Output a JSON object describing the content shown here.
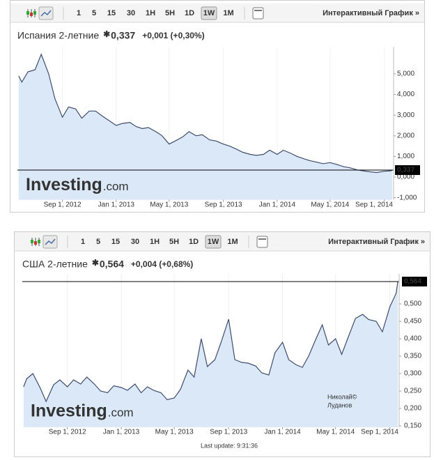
{
  "toolbar": {
    "intervals": [
      "1",
      "5",
      "15",
      "30",
      "1H",
      "5H",
      "1D",
      "1W",
      "1M"
    ],
    "selected": 7,
    "link": "Интерактивный График »"
  },
  "watermark": [
    "Investing",
    ".com"
  ],
  "chart_data": [
    {
      "type": "line",
      "title": "Испания 2-летние",
      "change": "+0,001 (+0,30%)",
      "last": {
        "value": 0.337,
        "label": "0,337"
      },
      "color": "#3e4c6d",
      "fill": "#dbe8f8",
      "grid": true,
      "x": [
        "2012-05-25",
        "2012-06-01",
        "2012-06-15",
        "2012-07-01",
        "2012-07-15",
        "2012-08-01",
        "2012-08-15",
        "2012-09-01",
        "2012-09-15",
        "2012-10-01",
        "2012-10-15",
        "2012-11-01",
        "2012-11-15",
        "2012-12-01",
        "2012-12-15",
        "2013-01-01",
        "2013-01-15",
        "2013-02-01",
        "2013-02-15",
        "2013-03-01",
        "2013-03-15",
        "2013-04-01",
        "2013-04-15",
        "2013-05-01",
        "2013-05-15",
        "2013-06-01",
        "2013-06-15",
        "2013-07-01",
        "2013-07-15",
        "2013-08-01",
        "2013-08-15",
        "2013-09-01",
        "2013-09-15",
        "2013-10-01",
        "2013-10-15",
        "2013-11-01",
        "2013-11-15",
        "2013-12-01",
        "2013-12-15",
        "2014-01-01",
        "2014-01-15",
        "2014-02-01",
        "2014-02-15",
        "2014-03-01",
        "2014-03-15",
        "2014-04-01",
        "2014-04-15",
        "2014-05-01",
        "2014-05-15",
        "2014-06-01",
        "2014-06-15",
        "2014-07-01",
        "2014-07-15",
        "2014-08-01",
        "2014-08-15",
        "2014-09-01",
        "2014-09-15",
        "2014-09-19"
      ],
      "values": [
        4.9,
        4.6,
        5.1,
        5.2,
        5.95,
        5.0,
        3.8,
        2.9,
        3.4,
        3.3,
        2.85,
        3.2,
        3.2,
        2.95,
        2.75,
        2.5,
        2.6,
        2.65,
        2.45,
        2.35,
        2.4,
        2.2,
        2.0,
        1.6,
        1.75,
        1.95,
        2.2,
        2.0,
        2.05,
        1.8,
        1.75,
        1.6,
        1.5,
        1.35,
        1.2,
        1.1,
        1.05,
        1.1,
        1.3,
        1.1,
        1.3,
        1.15,
        1.0,
        0.9,
        0.8,
        0.72,
        0.65,
        0.7,
        0.62,
        0.5,
        0.45,
        0.35,
        0.3,
        0.25,
        0.22,
        0.28,
        0.3,
        0.337
      ],
      "xlim": [
        "2012-05-22",
        "2014-09-22"
      ],
      "xticks": [
        {
          "value": "2012-09-01",
          "label": "Sep 1, 2012"
        },
        {
          "value": "2013-01-01",
          "label": "Jan 1, 2013"
        },
        {
          "value": "2013-05-01",
          "label": "May 1, 2013"
        },
        {
          "value": "2013-09-01",
          "label": "Sep 1, 2013"
        },
        {
          "value": "2014-01-01",
          "label": "Jan 1, 2014"
        },
        {
          "value": "2014-05-01",
          "label": "May 1, 2014"
        },
        {
          "value": "2014-09-01",
          "label": "Sep 1, 2014"
        }
      ],
      "ylim": [
        -1.1,
        6.3
      ],
      "yticks": [
        {
          "value": 5,
          "label": "5,000"
        },
        {
          "value": 4,
          "label": "4,000"
        },
        {
          "value": 3,
          "label": "3,000"
        },
        {
          "value": 2,
          "label": "2,000"
        },
        {
          "value": 1,
          "label": "1,000"
        },
        {
          "value": 0,
          "label": "0,000"
        },
        {
          "value": -1,
          "label": "-1,000"
        }
      ]
    },
    {
      "type": "line",
      "title": "США 2-летние",
      "change": "+0,004 (+0,68%)",
      "last": {
        "value": 0.564,
        "label": "0,564"
      },
      "color": "#3e4c6d",
      "fill": "#dbe8f8",
      "grid": true,
      "annotation": [
        "Николай©",
        "Луданов"
      ],
      "footer": "Last update: 9:31:36",
      "x": [
        "2012-05-25",
        "2012-06-01",
        "2012-06-15",
        "2012-07-01",
        "2012-07-15",
        "2012-08-01",
        "2012-08-15",
        "2012-09-01",
        "2012-09-15",
        "2012-10-01",
        "2012-10-15",
        "2012-11-01",
        "2012-11-15",
        "2012-12-01",
        "2012-12-15",
        "2013-01-01",
        "2013-01-15",
        "2013-02-01",
        "2013-02-15",
        "2013-03-01",
        "2013-03-15",
        "2013-04-01",
        "2013-04-15",
        "2013-05-01",
        "2013-05-15",
        "2013-06-01",
        "2013-06-15",
        "2013-07-01",
        "2013-07-15",
        "2013-08-01",
        "2013-08-15",
        "2013-09-01",
        "2013-09-15",
        "2013-10-01",
        "2013-10-15",
        "2013-11-01",
        "2013-11-15",
        "2013-12-01",
        "2013-12-15",
        "2014-01-01",
        "2014-01-15",
        "2014-02-01",
        "2014-02-15",
        "2014-03-01",
        "2014-03-15",
        "2014-04-01",
        "2014-04-15",
        "2014-05-01",
        "2014-05-15",
        "2014-06-01",
        "2014-06-15",
        "2014-07-01",
        "2014-07-15",
        "2014-08-01",
        "2014-08-15",
        "2014-09-01",
        "2014-09-15",
        "2014-09-19"
      ],
      "values": [
        0.262,
        0.285,
        0.3,
        0.26,
        0.22,
        0.268,
        0.282,
        0.262,
        0.282,
        0.27,
        0.29,
        0.27,
        0.25,
        0.245,
        0.265,
        0.26,
        0.252,
        0.27,
        0.245,
        0.262,
        0.252,
        0.245,
        0.225,
        0.23,
        0.255,
        0.31,
        0.29,
        0.4,
        0.32,
        0.34,
        0.39,
        0.456,
        0.34,
        0.332,
        0.33,
        0.322,
        0.302,
        0.296,
        0.36,
        0.39,
        0.34,
        0.325,
        0.318,
        0.35,
        0.392,
        0.44,
        0.382,
        0.4,
        0.355,
        0.412,
        0.458,
        0.47,
        0.455,
        0.45,
        0.42,
        0.492,
        0.53,
        0.564
      ],
      "xlim": [
        "2012-05-22",
        "2014-09-22"
      ],
      "xticks": [
        {
          "value": "2012-09-01",
          "label": "Sep 1, 2012"
        },
        {
          "value": "2013-01-01",
          "label": "Jan 1, 2013"
        },
        {
          "value": "2013-05-01",
          "label": "May 1, 2013"
        },
        {
          "value": "2013-09-01",
          "label": "Sep 1, 2013"
        },
        {
          "value": "2014-01-01",
          "label": "Jan 1, 2014"
        },
        {
          "value": "2014-05-01",
          "label": "May 1, 2014"
        },
        {
          "value": "2014-09-01",
          "label": "Sep 1, 2014"
        }
      ],
      "ylim": [
        0.146,
        0.586
      ],
      "yticks": [
        {
          "value": 0.5,
          "label": "0,500"
        },
        {
          "value": 0.45,
          "label": "0,450"
        },
        {
          "value": 0.4,
          "label": "0,400"
        },
        {
          "value": 0.35,
          "label": "0,350"
        },
        {
          "value": 0.3,
          "label": "0,300"
        },
        {
          "value": 0.25,
          "label": "0,250"
        },
        {
          "value": 0.2,
          "label": "0,200"
        },
        {
          "value": 0.15,
          "label": "0,150"
        }
      ]
    }
  ]
}
